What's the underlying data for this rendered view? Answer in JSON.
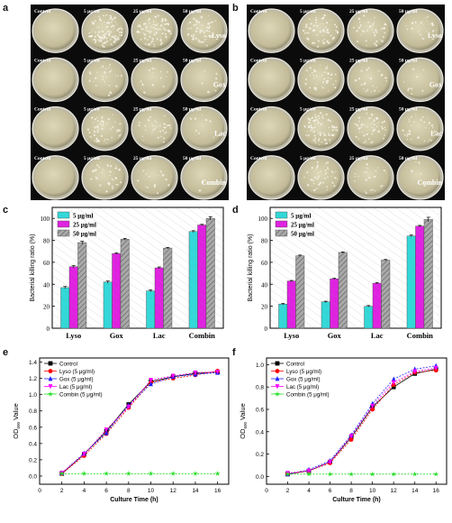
{
  "panels": {
    "a": "a",
    "b": "b",
    "c": "c",
    "d": "d",
    "e": "e",
    "f": "f"
  },
  "dishes": {
    "col_labels": [
      "Control",
      "5 μg/ml",
      "25 μg/ml",
      "50 μg/ml"
    ],
    "row_labels": [
      "Lyso",
      "Gox",
      "Lac",
      "Combin"
    ],
    "colors": {
      "background": "#0b0b0b",
      "agar": "#cfc8a8",
      "colony": "#f4f1e4"
    },
    "density_a": [
      [
        0,
        0.95,
        0.85,
        0.5
      ],
      [
        0,
        0.25,
        0.12,
        0.05
      ],
      [
        0,
        0.45,
        0.3,
        0.1
      ],
      [
        0,
        0.3,
        0.12,
        0.02
      ]
    ],
    "density_b": [
      [
        0,
        0.55,
        0.35,
        0.2
      ],
      [
        0,
        0.35,
        0.2,
        0.08
      ],
      [
        0,
        0.7,
        0.5,
        0.25
      ],
      [
        0,
        0.4,
        0.2,
        0.05
      ]
    ]
  },
  "chart_data": [
    {
      "panel": "c",
      "type": "bar",
      "categories": [
        "Lyso",
        "Gox",
        "Lac",
        "Combin"
      ],
      "series": [
        {
          "name": "5 μg/ml",
          "values": [
            37,
            42,
            34,
            88
          ],
          "errors": [
            1,
            1,
            0.8,
            0.8
          ],
          "color": "#33d8d8"
        },
        {
          "name": "25 μg/ml",
          "values": [
            56,
            68,
            55,
            94
          ],
          "errors": [
            1,
            0.6,
            0.8,
            0.6
          ],
          "color": "#e022e0"
        },
        {
          "name": "50 μg/ml",
          "values": [
            78,
            81,
            73,
            100
          ],
          "errors": [
            1.2,
            0.8,
            0.6,
            1.5
          ],
          "color": "#a9a9a9"
        }
      ],
      "ylabel": "Bacterial killing ratio (%)",
      "ylim": [
        0,
        110
      ],
      "yticks": [
        "0",
        "20",
        "40",
        "60",
        "80",
        "100"
      ],
      "legend": "top-left"
    },
    {
      "panel": "d",
      "type": "bar",
      "categories": [
        "Lyso",
        "Gox",
        "Lac",
        "Combin"
      ],
      "series": [
        {
          "name": "5 μg/ml",
          "values": [
            22,
            24,
            20,
            84
          ],
          "errors": [
            0.6,
            0.6,
            0.6,
            0.8
          ],
          "color": "#33d8d8"
        },
        {
          "name": "25 μg/ml",
          "values": [
            43,
            45,
            41,
            93
          ],
          "errors": [
            0.5,
            0.5,
            0.5,
            0.6
          ],
          "color": "#e022e0"
        },
        {
          "name": "50 μg/ml",
          "values": [
            66,
            69,
            62,
            99
          ],
          "errors": [
            0.6,
            0.5,
            0.6,
            2
          ],
          "color": "#a9a9a9"
        }
      ],
      "ylabel": "Bacterial killing ratio (%)",
      "ylim": [
        0,
        110
      ],
      "yticks": [
        "0",
        "20",
        "40",
        "60",
        "80",
        "100"
      ],
      "legend": "top-left"
    },
    {
      "panel": "e",
      "type": "line",
      "x": [
        2,
        4,
        6,
        8,
        10,
        12,
        14,
        16
      ],
      "xticks": [
        "0",
        "2",
        "4",
        "6",
        "8",
        "10",
        "12",
        "14",
        "16"
      ],
      "yticks": [
        "0.0",
        "0.2",
        "0.4",
        "0.6",
        "0.8",
        "1.0",
        "1.2",
        "1.4"
      ],
      "xlim": [
        0,
        17
      ],
      "ylim": [
        -0.1,
        1.45
      ],
      "xlabel": "Culture Time (h)",
      "ylabel_main": "OD",
      "ylabel_sub": "600",
      "ylabel_tail": " Value",
      "legend": "top-left",
      "series": [
        {
          "name": "Control",
          "values": [
            0.03,
            0.27,
            0.55,
            0.88,
            1.16,
            1.22,
            1.26,
            1.28
          ],
          "color": "#000000",
          "marker": "square"
        },
        {
          "name": "Lyso  (5 μg/ml)",
          "values": [
            0.03,
            0.25,
            0.52,
            0.84,
            1.15,
            1.2,
            1.24,
            1.29
          ],
          "color": "#ff0000",
          "marker": "circle"
        },
        {
          "name": "Gox  (5 μg/ml)",
          "values": [
            0.04,
            0.28,
            0.53,
            0.87,
            1.13,
            1.22,
            1.25,
            1.27
          ],
          "color": "#2020ff",
          "marker": "triangle-up"
        },
        {
          "name": "Lac  (5 μg/ml)",
          "values": [
            0.04,
            0.27,
            0.57,
            0.85,
            1.18,
            1.23,
            1.27,
            1.28
          ],
          "color": "#ff00ff",
          "marker": "triangle-down"
        },
        {
          "name": "Combin (5 μg/ml)",
          "values": [
            0.03,
            0.03,
            0.03,
            0.03,
            0.03,
            0.03,
            0.03,
            0.03
          ],
          "color": "#22dd22",
          "marker": "star"
        }
      ]
    },
    {
      "panel": "f",
      "type": "line",
      "x": [
        2,
        4,
        6,
        8,
        10,
        12,
        14,
        16
      ],
      "xticks": [
        "0",
        "2",
        "4",
        "6",
        "8",
        "10",
        "12",
        "14",
        "16"
      ],
      "yticks": [
        "0.0",
        "0.2",
        "0.4",
        "0.6",
        "0.8",
        "1.0"
      ],
      "xlim": [
        0,
        17
      ],
      "ylim": [
        -0.07,
        1.06
      ],
      "xlabel": "Culture Time (h)",
      "ylabel_main": "OD",
      "ylabel_sub": "600",
      "ylabel_tail": " Value",
      "legend": "top-left",
      "series": [
        {
          "name": "Control",
          "values": [
            0.02,
            0.05,
            0.13,
            0.35,
            0.62,
            0.8,
            0.92,
            0.96
          ],
          "color": "#000000",
          "marker": "square"
        },
        {
          "name": "Lyso  (5 μg/ml)",
          "values": [
            0.02,
            0.05,
            0.12,
            0.33,
            0.6,
            0.82,
            0.93,
            0.95
          ],
          "color": "#ff0000",
          "marker": "circle"
        },
        {
          "name": "Gox  (5 μg/ml)",
          "values": [
            0.02,
            0.06,
            0.14,
            0.37,
            0.65,
            0.87,
            0.96,
            0.99
          ],
          "color": "#2020ff",
          "marker": "triangle-up"
        },
        {
          "name": "Lac  (5 μg/ml)",
          "values": [
            0.03,
            0.05,
            0.13,
            0.36,
            0.63,
            0.84,
            0.94,
            0.97
          ],
          "color": "#ff00ff",
          "marker": "triangle-down"
        },
        {
          "name": "Combin (5 μg/ml)",
          "values": [
            0.02,
            0.02,
            0.02,
            0.02,
            0.02,
            0.02,
            0.02,
            0.02
          ],
          "color": "#22dd22",
          "marker": "star"
        }
      ]
    }
  ]
}
